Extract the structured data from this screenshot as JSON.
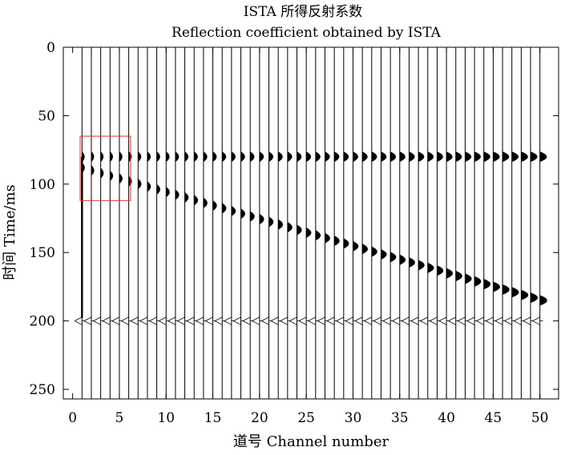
{
  "chart_data": {
    "type": "seismic-wiggle",
    "title": "ISTA 所得反射系数",
    "subtitle": "Reflection coefficient obtained by ISTA",
    "xlabel": "道号 Channel number",
    "ylabel": "时间 Time/ms",
    "xlim": [
      -1,
      52
    ],
    "ylim": [
      0,
      257
    ],
    "y_inverted": true,
    "xticks": [
      0,
      5,
      10,
      15,
      20,
      25,
      30,
      35,
      40,
      45,
      50
    ],
    "yticks": [
      0,
      50,
      100,
      150,
      200,
      250
    ],
    "channels": [
      1,
      2,
      3,
      4,
      5,
      6,
      7,
      8,
      9,
      10,
      11,
      12,
      13,
      14,
      15,
      16,
      17,
      18,
      19,
      20,
      21,
      22,
      23,
      24,
      25,
      26,
      27,
      28,
      29,
      30,
      31,
      32,
      33,
      34,
      35,
      36,
      37,
      38,
      39,
      40,
      41,
      42,
      43,
      44,
      45,
      46,
      47,
      48,
      49,
      50
    ],
    "events": [
      {
        "name": "flat",
        "time_start": 80,
        "time_end": 80
      },
      {
        "name": "dipping",
        "time_start": 88,
        "time_end": 185
      },
      {
        "name": "wavelet",
        "time_start": 200,
        "time_end": 200
      }
    ],
    "grid": false,
    "highlight_box": {
      "x_range": [
        0.8,
        6.2
      ],
      "y_range": [
        65,
        112
      ],
      "color": "#e03030"
    }
  }
}
